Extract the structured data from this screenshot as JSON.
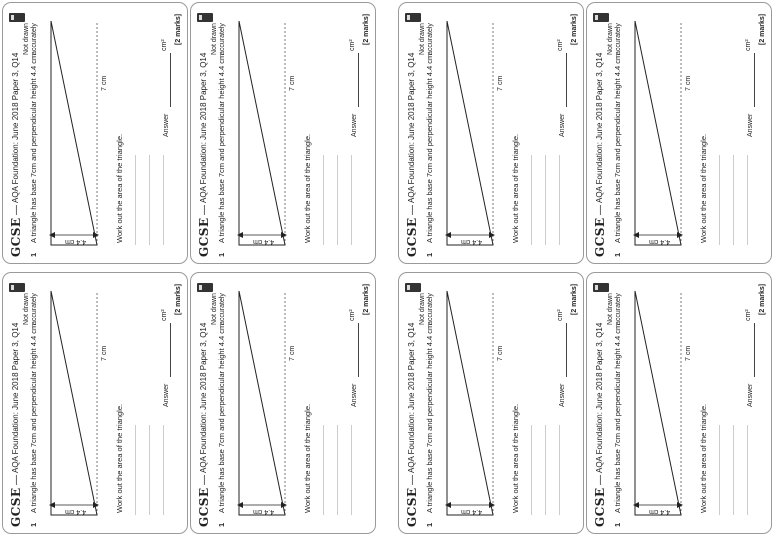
{
  "worksheet": {
    "brand": "GCSE",
    "dash": "—",
    "source": "AQA Foundation: June 2018 Paper 3, Q14",
    "question_number": "1",
    "question": "A triangle has base 7cm and perpendicular height 4.4 cm",
    "not_drawn": "Not drawn accurately",
    "height_label": "4.4 cm",
    "base_label": "7 cm",
    "instruction": "Work out the area of the triangle.",
    "answer_label": "Answer",
    "unit": "cm²",
    "marks": "[2 marks]"
  }
}
